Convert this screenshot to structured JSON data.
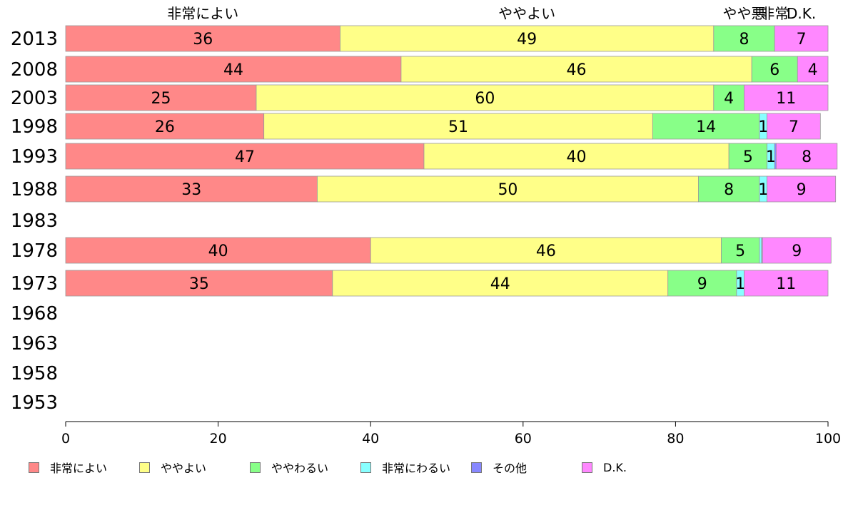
{
  "chart_data": {
    "type": "bar",
    "orientation": "horizontal",
    "stacked": true,
    "categories": [
      "2013",
      "2008",
      "2003",
      "1998",
      "1993",
      "1988",
      "1983",
      "1978",
      "1973",
      "1968",
      "1963",
      "1958",
      "1953"
    ],
    "series": [
      {
        "name": "非常によい",
        "color": "#ff8888",
        "values": [
          36,
          44,
          25,
          26,
          47,
          33,
          null,
          40,
          35,
          null,
          null,
          null,
          null
        ]
      },
      {
        "name": "ややよい",
        "color": "#ffff88",
        "values": [
          49,
          46,
          60,
          51,
          40,
          50,
          null,
          46,
          44,
          null,
          null,
          null,
          null
        ]
      },
      {
        "name": "ややわるい",
        "color": "#88ff88",
        "values": [
          8,
          6,
          4,
          14,
          5,
          8,
          null,
          5,
          9,
          null,
          null,
          null,
          null
        ]
      },
      {
        "name": "非常にわるい",
        "color": "#88ffff",
        "values": [
          null,
          null,
          null,
          1,
          1,
          1,
          null,
          0.3,
          1,
          null,
          null,
          null,
          null
        ]
      },
      {
        "name": "その他",
        "color": "#8888ff",
        "values": [
          null,
          null,
          null,
          null,
          0.2,
          null,
          null,
          0.1,
          null,
          null,
          null,
          null,
          null
        ]
      },
      {
        "name": "D.K.",
        "color": "#ff88ff",
        "values": [
          7,
          4,
          11,
          7,
          8,
          9,
          null,
          9,
          11,
          null,
          null,
          null,
          null
        ]
      }
    ],
    "data_labels": [
      [
        "36",
        "49",
        "8",
        "",
        "",
        "7"
      ],
      [
        "44",
        "46",
        "6",
        "",
        "",
        "4"
      ],
      [
        "25",
        "60",
        "4",
        "",
        "",
        "11"
      ],
      [
        "26",
        "51",
        "14",
        "1",
        "",
        "7"
      ],
      [
        "47",
        "40",
        "5",
        "1",
        "",
        "8"
      ],
      [
        "33",
        "50",
        "8",
        "1",
        "",
        "9"
      ],
      [
        "",
        "",
        "",
        "",
        "",
        ""
      ],
      [
        "40",
        "46",
        "5",
        "",
        "",
        "9"
      ],
      [
        "35",
        "44",
        "9",
        "1",
        "",
        "11"
      ],
      [
        "",
        "",
        "",
        "",
        "",
        ""
      ],
      [
        "",
        "",
        "",
        "",
        "",
        ""
      ],
      [
        "",
        "",
        "",
        "",
        "",
        ""
      ],
      [
        "",
        "",
        "",
        "",
        "",
        ""
      ]
    ],
    "top_labels": [
      "非常によい",
      "ややよい",
      "ややわるい",
      "非常にわるい",
      "D.K."
    ],
    "top_labels_shown": [
      "非常によい",
      "ややよい",
      "やや悪",
      "非常",
      "D.K."
    ],
    "xlim": [
      0,
      100
    ],
    "xticks": [
      "0",
      "20",
      "40",
      "60",
      "80",
      "100"
    ],
    "grid": false,
    "legend_position": "bottom"
  },
  "legend": {
    "items": [
      {
        "label": "非常によい",
        "color": "#ff8888"
      },
      {
        "label": "ややよい",
        "color": "#ffff88"
      },
      {
        "label": "ややわるい",
        "color": "#88ff88"
      },
      {
        "label": "非常にわるい",
        "color": "#88ffff"
      },
      {
        "label": "その他",
        "color": "#8888ff"
      },
      {
        "label": "D.K.",
        "color": "#ff88ff"
      }
    ]
  }
}
